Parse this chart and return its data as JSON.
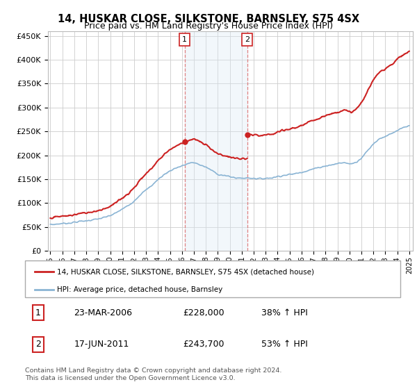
{
  "title": "14, HUSKAR CLOSE, SILKSTONE, BARNSLEY, S75 4SX",
  "subtitle": "Price paid vs. HM Land Registry's House Price Index (HPI)",
  "ylabel_ticks": [
    "£0",
    "£50K",
    "£100K",
    "£150K",
    "£200K",
    "£250K",
    "£300K",
    "£350K",
    "£400K",
    "£450K"
  ],
  "ytick_values": [
    0,
    50000,
    100000,
    150000,
    200000,
    250000,
    300000,
    350000,
    400000,
    450000
  ],
  "ylim": [
    0,
    460000
  ],
  "xlim_start": 1994.8,
  "xlim_end": 2025.3,
  "hpi_color": "#8ab4d4",
  "price_color": "#cc2222",
  "marker1_date": 2006.22,
  "marker1_value": 228000,
  "marker2_date": 2011.46,
  "marker2_value": 243700,
  "shade_color": "#daeaf5",
  "vline_color": "#dd6666",
  "legend_line1": "14, HUSKAR CLOSE, SILKSTONE, BARNSLEY, S75 4SX (detached house)",
  "legend_line2": "HPI: Average price, detached house, Barnsley",
  "table_row1_num": "1",
  "table_row1_date": "23-MAR-2006",
  "table_row1_price": "£228,000",
  "table_row1_hpi": "38% ↑ HPI",
  "table_row2_num": "2",
  "table_row2_date": "17-JUN-2011",
  "table_row2_price": "£243,700",
  "table_row2_hpi": "53% ↑ HPI",
  "footer": "Contains HM Land Registry data © Crown copyright and database right 2024.\nThis data is licensed under the Open Government Licence v3.0.",
  "xtick_years": [
    1995,
    1996,
    1997,
    1998,
    1999,
    2000,
    2001,
    2002,
    2003,
    2004,
    2005,
    2006,
    2007,
    2008,
    2009,
    2010,
    2011,
    2012,
    2013,
    2014,
    2015,
    2016,
    2017,
    2018,
    2019,
    2020,
    2021,
    2022,
    2023,
    2024,
    2025
  ],
  "hpi_data_x": [
    1995.0,
    1995.5,
    1996.0,
    1996.5,
    1997.0,
    1997.5,
    1998.0,
    1998.5,
    1999.0,
    1999.5,
    2000.0,
    2000.5,
    2001.0,
    2001.5,
    2002.0,
    2002.5,
    2003.0,
    2003.5,
    2004.0,
    2004.5,
    2005.0,
    2005.5,
    2006.0,
    2006.5,
    2007.0,
    2007.5,
    2008.0,
    2008.5,
    2009.0,
    2009.5,
    2010.0,
    2010.5,
    2011.0,
    2011.5,
    2012.0,
    2012.5,
    2013.0,
    2013.5,
    2014.0,
    2014.5,
    2015.0,
    2015.5,
    2016.0,
    2016.5,
    2017.0,
    2017.5,
    2018.0,
    2018.5,
    2019.0,
    2019.5,
    2020.0,
    2020.5,
    2021.0,
    2021.5,
    2022.0,
    2022.5,
    2023.0,
    2023.5,
    2024.0,
    2024.5,
    2025.0
  ],
  "hpi_data_y": [
    55000,
    56000,
    57500,
    58000,
    60000,
    62000,
    63000,
    65000,
    67000,
    70000,
    74000,
    80000,
    88000,
    95000,
    105000,
    118000,
    128000,
    138000,
    150000,
    160000,
    168000,
    174000,
    178000,
    183000,
    185000,
    180000,
    175000,
    168000,
    160000,
    158000,
    155000,
    153000,
    152000,
    153000,
    152000,
    151000,
    152000,
    153000,
    156000,
    158000,
    160000,
    162000,
    165000,
    168000,
    172000,
    175000,
    178000,
    180000,
    183000,
    185000,
    182000,
    185000,
    195000,
    210000,
    225000,
    235000,
    240000,
    245000,
    252000,
    258000,
    262000
  ]
}
